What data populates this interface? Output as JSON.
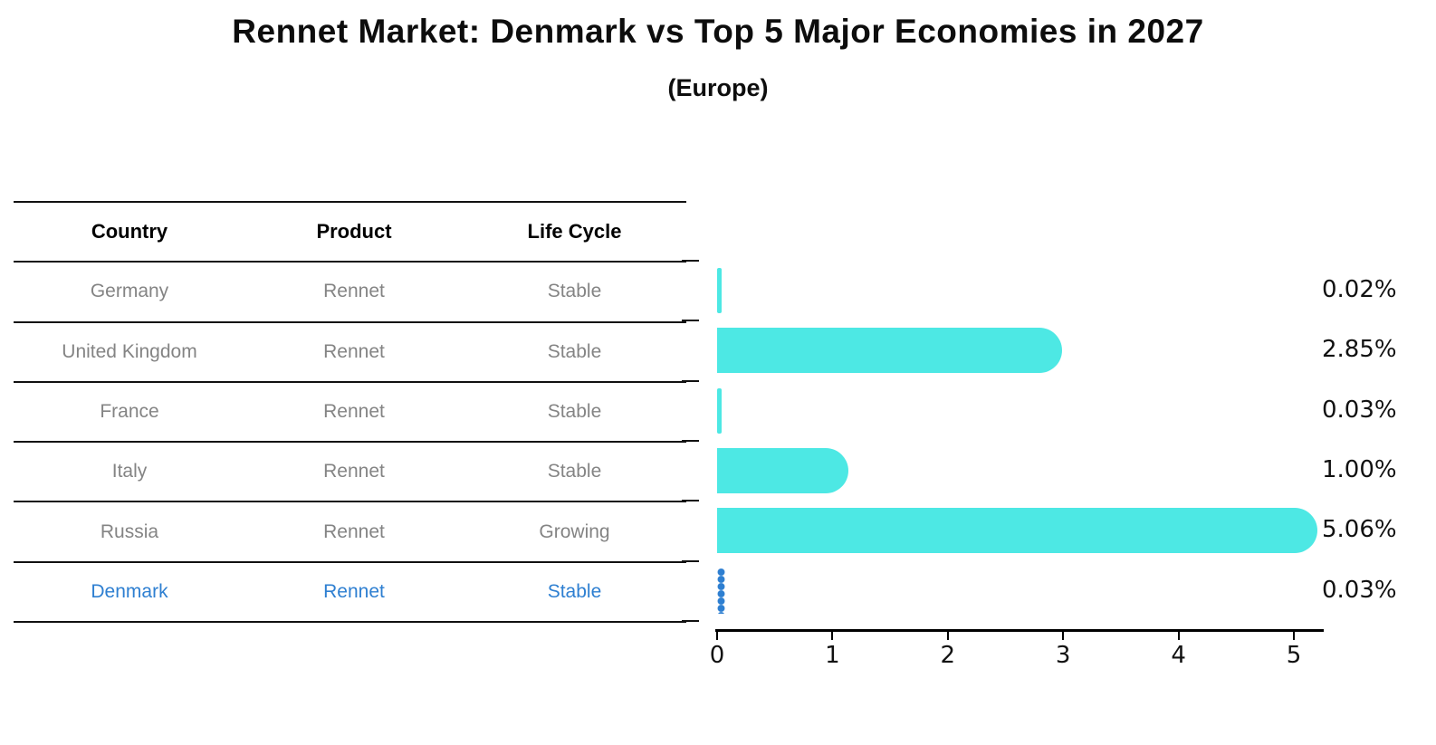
{
  "title": "Rennet Market: Denmark vs Top 5 Major Economies in 2027",
  "subtitle": "(Europe)",
  "table": {
    "headers": [
      "Country",
      "Product",
      "Life Cycle"
    ],
    "rows": [
      {
        "country": "Germany",
        "product": "Rennet",
        "life_cycle": "Stable",
        "highlight": false
      },
      {
        "country": "United Kingdom",
        "product": "Rennet",
        "life_cycle": "Stable",
        "highlight": false
      },
      {
        "country": "France",
        "product": "Rennet",
        "life_cycle": "Stable",
        "highlight": false
      },
      {
        "country": "Italy",
        "product": "Rennet",
        "life_cycle": "Stable",
        "highlight": false
      },
      {
        "country": "Russia",
        "product": "Rennet",
        "life_cycle": "Growing",
        "highlight": false
      },
      {
        "country": "Denmark",
        "product": "Rennet",
        "life_cycle": "Stable",
        "highlight": true
      }
    ]
  },
  "chart_data": {
    "type": "bar",
    "orientation": "horizontal",
    "title": "Rennet Market: Denmark vs Top 5 Major Economies in 2027",
    "subtitle": "(Europe)",
    "categories": [
      "Germany",
      "United Kingdom",
      "France",
      "Italy",
      "Russia",
      "Denmark"
    ],
    "values": [
      0.02,
      2.85,
      0.03,
      1.0,
      5.06,
      0.03
    ],
    "value_labels": [
      "0.02%",
      "2.85%",
      "0.03%",
      "1.00%",
      "5.06%",
      "0.03%"
    ],
    "x_ticks": [
      0,
      1,
      2,
      3,
      4,
      5
    ],
    "xlim": [
      0,
      5.3
    ],
    "xlabel": "",
    "ylabel": "",
    "grid": false,
    "legend": "none",
    "bar_color": "#4DE8E4",
    "highlight_color": "#2E7FD1",
    "highlight_index": 5
  }
}
